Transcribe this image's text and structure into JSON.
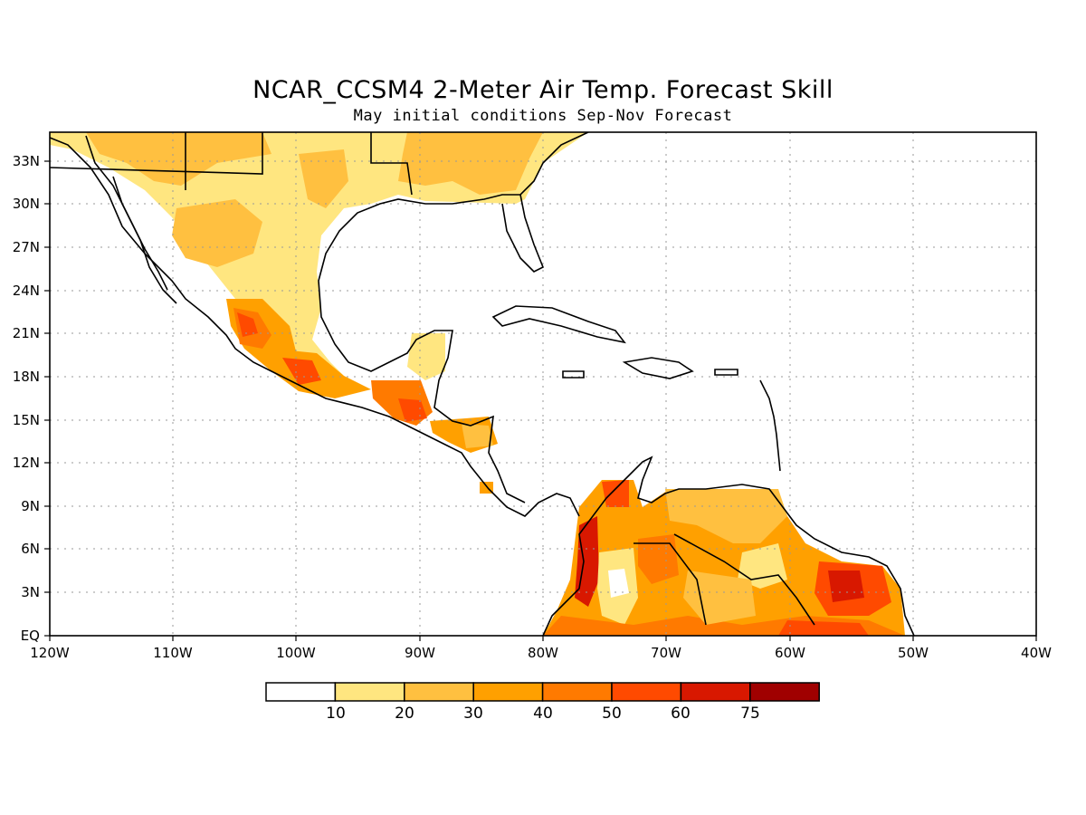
{
  "title": "NCAR_CCSM4 2-Meter Air Temp. Forecast Skill",
  "subtitle": "May initial conditions  Sep-Nov Forecast",
  "lon_ticks": [
    "120W",
    "110W",
    "100W",
    "90W",
    "80W",
    "70W",
    "60W",
    "50W",
    "40W"
  ],
  "lat_ticks": [
    "EQ",
    "3N",
    "6N",
    "9N",
    "12N",
    "15N",
    "18N",
    "21N",
    "24N",
    "27N",
    "30N",
    "33N"
  ],
  "colorbar": {
    "labels": [
      "10",
      "20",
      "30",
      "40",
      "50",
      "60",
      "75"
    ],
    "colors": [
      "#ffffff",
      "#ffe680",
      "#ffc040",
      "#ffa000",
      "#ff7a00",
      "#ff4a00",
      "#d81800",
      "#a00000"
    ]
  },
  "colors": {
    "coast": "#000000",
    "grid": "#999999"
  }
}
